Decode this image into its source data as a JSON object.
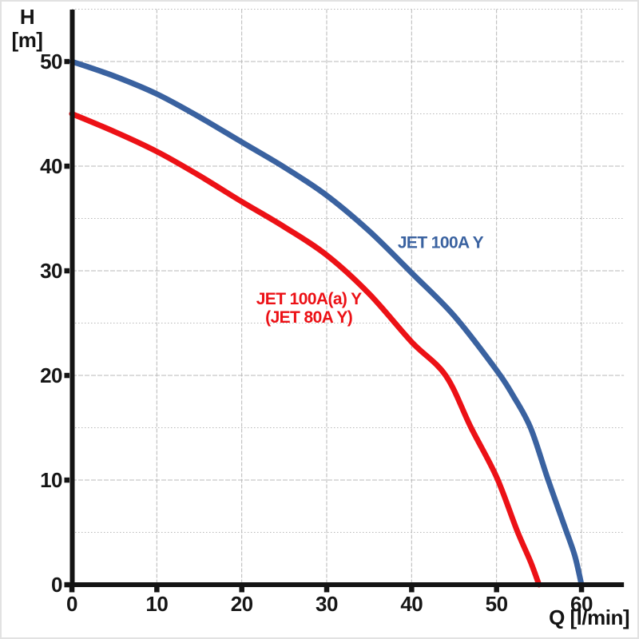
{
  "chart_data": {
    "type": "line",
    "title": "",
    "xlabel": "Q [l/min]",
    "ylabel": "H [m]",
    "ylabel_lines": [
      "H",
      "[m]"
    ],
    "xlim": [
      0,
      65
    ],
    "ylim": [
      0,
      55
    ],
    "x_ticks": [
      0,
      10,
      20,
      30,
      40,
      50,
      60
    ],
    "y_ticks": [
      0,
      10,
      20,
      30,
      40,
      50
    ],
    "x_grid_step": 10,
    "y_grid_minor_step": 5,
    "grid": "on",
    "legend_position": "inline-labels-on-plot",
    "axis_color": "#141414",
    "grid_color": "#b8b8b8",
    "series": [
      {
        "name": "JET 100A Y",
        "color": "#3a62a0",
        "label_lines": [
          "JET 100A Y"
        ],
        "label_pos_qh": [
          43.4,
          32.7
        ],
        "points": [
          [
            0,
            50
          ],
          [
            5,
            48.6
          ],
          [
            10,
            46.9
          ],
          [
            15,
            44.7
          ],
          [
            20,
            42.3
          ],
          [
            25,
            39.9
          ],
          [
            30,
            37.2
          ],
          [
            35,
            33.8
          ],
          [
            40,
            29.8
          ],
          [
            45,
            25.7
          ],
          [
            50,
            20.5
          ],
          [
            52,
            18.0
          ],
          [
            54,
            15.0
          ],
          [
            56,
            10.2
          ],
          [
            58,
            5.6
          ],
          [
            59.2,
            2.8
          ],
          [
            60,
            0
          ]
        ]
      },
      {
        "name": "JET 100A(a) Y (JET 80A Y)",
        "color": "#ec1116",
        "label_lines": [
          "JET 100A(a) Y",
          "(JET 80A Y)"
        ],
        "label_pos_qh": [
          27.9,
          26.4
        ],
        "points": [
          [
            0,
            45
          ],
          [
            5,
            43.3
          ],
          [
            10,
            41.4
          ],
          [
            15,
            39.1
          ],
          [
            20,
            36.6
          ],
          [
            25,
            34.2
          ],
          [
            30,
            31.5
          ],
          [
            35,
            27.8
          ],
          [
            40,
            23.2
          ],
          [
            44,
            20.0
          ],
          [
            47,
            15.0
          ],
          [
            50,
            10.3
          ],
          [
            52.4,
            5.2
          ],
          [
            54,
            2.2
          ],
          [
            55,
            0
          ]
        ]
      }
    ]
  }
}
